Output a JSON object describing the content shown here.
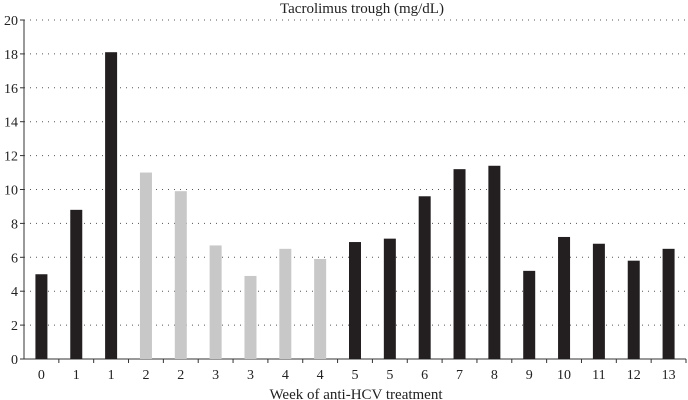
{
  "chart_data": {
    "type": "bar",
    "title": "Tacrolimus trough (mg/dL)",
    "xlabel": "Week of anti-HCV treatment",
    "ylabel": "",
    "ylim": [
      0,
      20
    ],
    "yticks": [
      "0",
      "2",
      "4",
      "6",
      "8",
      "10",
      "12",
      "14",
      "16",
      "18",
      "20"
    ],
    "grid": "horizontal-dotted",
    "categories": [
      "0",
      "1",
      "1",
      "2",
      "2",
      "3",
      "3",
      "4",
      "4",
      "5",
      "5",
      "6",
      "7",
      "8",
      "9",
      "10",
      "11",
      "12",
      "13"
    ],
    "values": [
      5.0,
      8.8,
      18.1,
      11.0,
      9.9,
      6.7,
      4.9,
      6.5,
      5.9,
      6.9,
      7.1,
      9.6,
      11.2,
      11.4,
      5.2,
      7.2,
      6.8,
      5.8,
      6.5
    ],
    "bar_colors": [
      "#231f20",
      "#231f20",
      "#231f20",
      "#c8c8c8",
      "#c8c8c8",
      "#c8c8c8",
      "#c8c8c8",
      "#c8c8c8",
      "#c8c8c8",
      "#231f20",
      "#231f20",
      "#231f20",
      "#231f20",
      "#231f20",
      "#231f20",
      "#231f20",
      "#231f20",
      "#231f20",
      "#231f20"
    ]
  }
}
